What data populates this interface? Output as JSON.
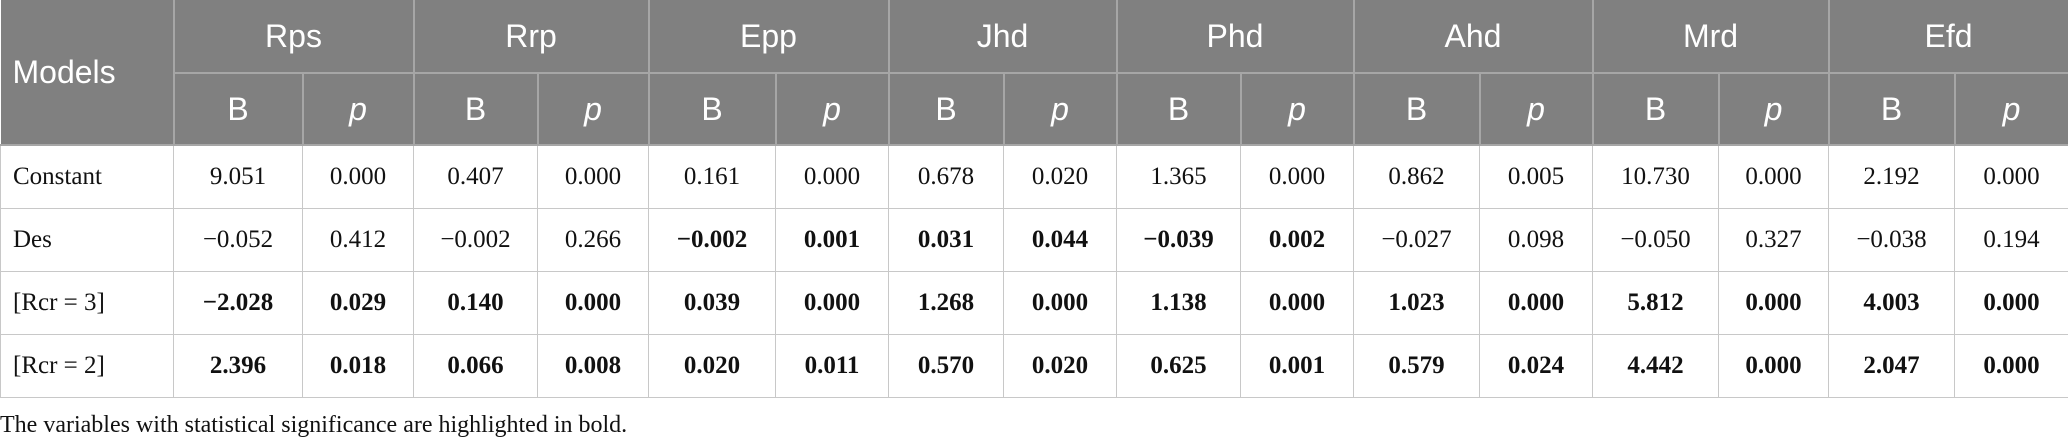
{
  "table": {
    "header": {
      "first": "Models",
      "groups": [
        "Rps",
        "Rrp",
        "Epp",
        "Jhd",
        "Phd",
        "Ahd",
        "Mrd",
        "Efd"
      ],
      "sub": [
        "B",
        "p"
      ]
    },
    "rows": [
      {
        "label": "Constant",
        "cells": [
          {
            "text": "9.051",
            "bold": false
          },
          {
            "text": "0.000",
            "bold": false
          },
          {
            "text": "0.407",
            "bold": false
          },
          {
            "text": "0.000",
            "bold": false
          },
          {
            "text": "0.161",
            "bold": false
          },
          {
            "text": "0.000",
            "bold": false
          },
          {
            "text": "0.678",
            "bold": false
          },
          {
            "text": "0.020",
            "bold": false
          },
          {
            "text": "1.365",
            "bold": false
          },
          {
            "text": "0.000",
            "bold": false
          },
          {
            "text": "0.862",
            "bold": false
          },
          {
            "text": "0.005",
            "bold": false
          },
          {
            "text": "10.730",
            "bold": false
          },
          {
            "text": "0.000",
            "bold": false
          },
          {
            "text": "2.192",
            "bold": false
          },
          {
            "text": "0.000",
            "bold": false
          }
        ]
      },
      {
        "label": "Des",
        "cells": [
          {
            "text": "−0.052",
            "bold": false
          },
          {
            "text": "0.412",
            "bold": false
          },
          {
            "text": "−0.002",
            "bold": false
          },
          {
            "text": "0.266",
            "bold": false
          },
          {
            "text": "−0.002",
            "bold": true
          },
          {
            "text": "0.001",
            "bold": true
          },
          {
            "text": "0.031",
            "bold": true
          },
          {
            "text": "0.044",
            "bold": true
          },
          {
            "text": "−0.039",
            "bold": true
          },
          {
            "text": "0.002",
            "bold": true
          },
          {
            "text": "−0.027",
            "bold": false
          },
          {
            "text": "0.098",
            "bold": false
          },
          {
            "text": "−0.050",
            "bold": false
          },
          {
            "text": "0.327",
            "bold": false
          },
          {
            "text": "−0.038",
            "bold": false
          },
          {
            "text": "0.194",
            "bold": false
          }
        ]
      },
      {
        "label": "[Rcr = 3]",
        "cells": [
          {
            "text": "−2.028",
            "bold": true
          },
          {
            "text": "0.029",
            "bold": true
          },
          {
            "text": "0.140",
            "bold": true
          },
          {
            "text": "0.000",
            "bold": true
          },
          {
            "text": "0.039",
            "bold": true
          },
          {
            "text": "0.000",
            "bold": true
          },
          {
            "text": "1.268",
            "bold": true
          },
          {
            "text": "0.000",
            "bold": true
          },
          {
            "text": "1.138",
            "bold": true
          },
          {
            "text": "0.000",
            "bold": true
          },
          {
            "text": "1.023",
            "bold": true
          },
          {
            "text": "0.000",
            "bold": true
          },
          {
            "text": "5.812",
            "bold": true
          },
          {
            "text": "0.000",
            "bold": true
          },
          {
            "text": "4.003",
            "bold": true
          },
          {
            "text": "0.000",
            "bold": true
          }
        ]
      },
      {
        "label": "[Rcr = 2]",
        "cells": [
          {
            "text": "2.396",
            "bold": true
          },
          {
            "text": "0.018",
            "bold": true
          },
          {
            "text": "0.066",
            "bold": true
          },
          {
            "text": "0.008",
            "bold": true
          },
          {
            "text": "0.020",
            "bold": true
          },
          {
            "text": "0.011",
            "bold": true
          },
          {
            "text": "0.570",
            "bold": true
          },
          {
            "text": "0.020",
            "bold": true
          },
          {
            "text": "0.625",
            "bold": true
          },
          {
            "text": "0.001",
            "bold": true
          },
          {
            "text": "0.579",
            "bold": true
          },
          {
            "text": "0.024",
            "bold": true
          },
          {
            "text": "4.442",
            "bold": true
          },
          {
            "text": "0.000",
            "bold": true
          },
          {
            "text": "2.047",
            "bold": true
          },
          {
            "text": "0.000",
            "bold": true
          }
        ]
      }
    ],
    "footnote": "The variables with statistical significance are highlighted in bold."
  }
}
